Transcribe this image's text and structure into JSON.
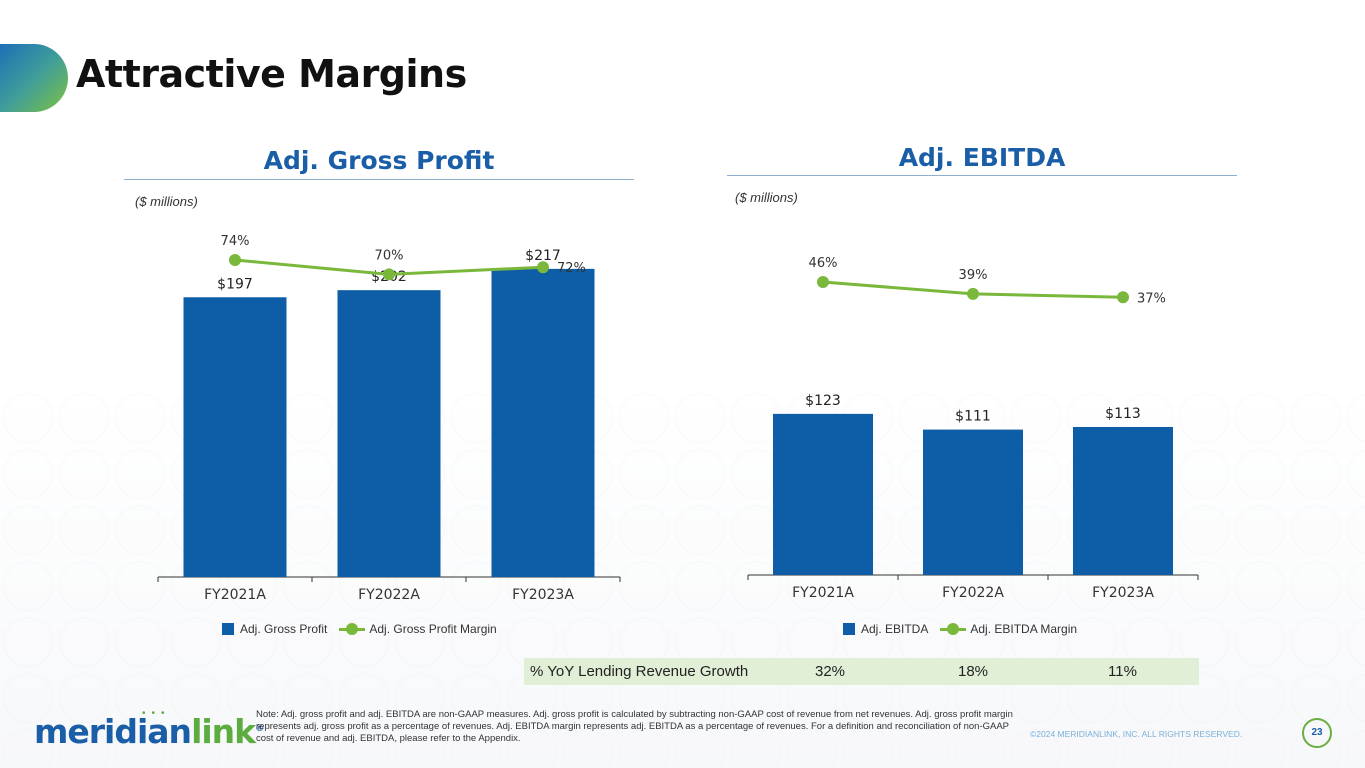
{
  "page": {
    "title": "Attractive Margins",
    "units_label": "($ millions)",
    "note": "Note: Adj. gross profit and adj. EBITDA are non-GAAP measures. Adj. gross profit is calculated by subtracting non-GAAP cost of revenue from net revenues. Adj. gross profit margin represents adj. gross profit as a percentage of revenues. Adj. EBITDA margin represents adj. EBITDA as a percentage of revenues. For a definition and reconciliation of non-GAAP cost of revenue and adj. EBITDA, please refer to the Appendix.",
    "copyright": "©2024 MERIDIANLINK, INC. ALL RIGHTS RESERVED.",
    "page_number": "23",
    "logo": {
      "part1": "meridian",
      "part2": "link",
      "trademark": "®"
    }
  },
  "growth_row": {
    "label": "% YoY Lending Revenue Growth",
    "values": [
      "32%",
      "18%",
      "11%"
    ]
  },
  "colors": {
    "bar": "#0d5ea6",
    "line": "#7ab83c",
    "heading": "#1a5ea8"
  },
  "chart_data": [
    {
      "type": "bar",
      "title": "Adj. Gross Profit",
      "categories": [
        "FY2021A",
        "FY2022A",
        "FY2023A"
      ],
      "series": [
        {
          "name": "Adj. Gross Profit",
          "values": [
            197,
            202,
            217
          ],
          "labels": [
            "$197",
            "$202",
            "$217"
          ]
        },
        {
          "name": "Adj. Gross Profit Margin",
          "type": "line",
          "values": [
            74,
            70,
            72
          ],
          "labels": [
            "74%",
            "70%",
            "72%"
          ]
        }
      ],
      "ylim": [
        0,
        250
      ]
    },
    {
      "type": "bar",
      "title": "Adj. EBITDA",
      "categories": [
        "FY2021A",
        "FY2022A",
        "FY2023A"
      ],
      "series": [
        {
          "name": "Adj. EBITDA",
          "values": [
            123,
            111,
            113
          ],
          "labels": [
            "$123",
            "$111",
            "$113"
          ]
        },
        {
          "name": "Adj. EBITDA Margin",
          "type": "line",
          "values": [
            46,
            39,
            37
          ],
          "labels": [
            "46%",
            "39%",
            "37%"
          ]
        }
      ],
      "ylim": [
        0,
        230
      ]
    }
  ]
}
